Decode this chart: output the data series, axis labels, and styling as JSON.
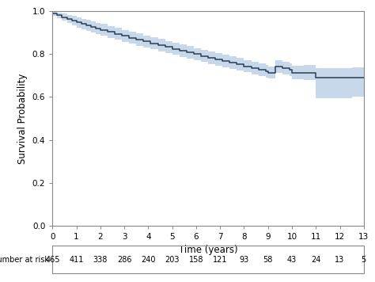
{
  "time_steps": [
    0,
    0.2,
    0.4,
    0.6,
    0.8,
    1.0,
    1.2,
    1.4,
    1.6,
    1.8,
    2.0,
    2.3,
    2.6,
    2.9,
    3.2,
    3.5,
    3.8,
    4.1,
    4.4,
    4.7,
    5.0,
    5.3,
    5.6,
    5.9,
    6.2,
    6.5,
    6.8,
    7.1,
    7.4,
    7.7,
    8.0,
    8.3,
    8.6,
    8.9,
    9.0,
    9.3,
    9.6,
    9.9,
    10.0,
    10.5,
    11.0,
    11.5,
    12.0,
    12.5,
    13.0
  ],
  "surv_steps": [
    0.99,
    0.981,
    0.972,
    0.964,
    0.956,
    0.948,
    0.941,
    0.934,
    0.927,
    0.92,
    0.913,
    0.904,
    0.895,
    0.886,
    0.877,
    0.868,
    0.859,
    0.85,
    0.841,
    0.833,
    0.825,
    0.816,
    0.808,
    0.8,
    0.792,
    0.784,
    0.776,
    0.768,
    0.76,
    0.752,
    0.744,
    0.736,
    0.728,
    0.72,
    0.714,
    0.742,
    0.736,
    0.728,
    0.714,
    0.714,
    0.69,
    0.69,
    0.69,
    0.69,
    0.69
  ],
  "ci_upper": [
    1.0,
    0.995,
    0.989,
    0.983,
    0.977,
    0.971,
    0.965,
    0.959,
    0.953,
    0.947,
    0.941,
    0.932,
    0.923,
    0.914,
    0.905,
    0.896,
    0.887,
    0.878,
    0.87,
    0.861,
    0.853,
    0.845,
    0.837,
    0.829,
    0.821,
    0.813,
    0.805,
    0.797,
    0.789,
    0.781,
    0.773,
    0.765,
    0.757,
    0.749,
    0.743,
    0.772,
    0.765,
    0.757,
    0.745,
    0.748,
    0.735,
    0.735,
    0.735,
    0.74,
    0.755
  ],
  "ci_lower": [
    0.98,
    0.967,
    0.955,
    0.945,
    0.935,
    0.925,
    0.917,
    0.909,
    0.901,
    0.893,
    0.885,
    0.876,
    0.867,
    0.858,
    0.849,
    0.84,
    0.831,
    0.822,
    0.812,
    0.805,
    0.797,
    0.787,
    0.779,
    0.771,
    0.763,
    0.755,
    0.747,
    0.739,
    0.731,
    0.723,
    0.715,
    0.707,
    0.699,
    0.691,
    0.685,
    0.712,
    0.707,
    0.699,
    0.683,
    0.68,
    0.595,
    0.595,
    0.595,
    0.6,
    0.625
  ],
  "number_at_risk": [
    465,
    411,
    338,
    286,
    240,
    203,
    158,
    121,
    93,
    58,
    43,
    24,
    13,
    5
  ],
  "risk_times": [
    0,
    1,
    2,
    3,
    4,
    5,
    6,
    7,
    8,
    9,
    10,
    11,
    12,
    13
  ],
  "xlabel": "Time (years)",
  "ylabel": "Survival Probability",
  "risk_label": "Number at risk",
  "xlim": [
    0,
    13
  ],
  "ylim": [
    0.0,
    1.0
  ],
  "yticks": [
    0.0,
    0.2,
    0.4,
    0.6,
    0.8,
    1.0
  ],
  "xticks": [
    0,
    1,
    2,
    3,
    4,
    5,
    6,
    7,
    8,
    9,
    10,
    11,
    12,
    13
  ],
  "line_color": "#2b3d52",
  "ci_color": "#a8c4e0",
  "ci_alpha": 0.65,
  "bg_color": "#ffffff",
  "border_color": "#aaaaaa"
}
